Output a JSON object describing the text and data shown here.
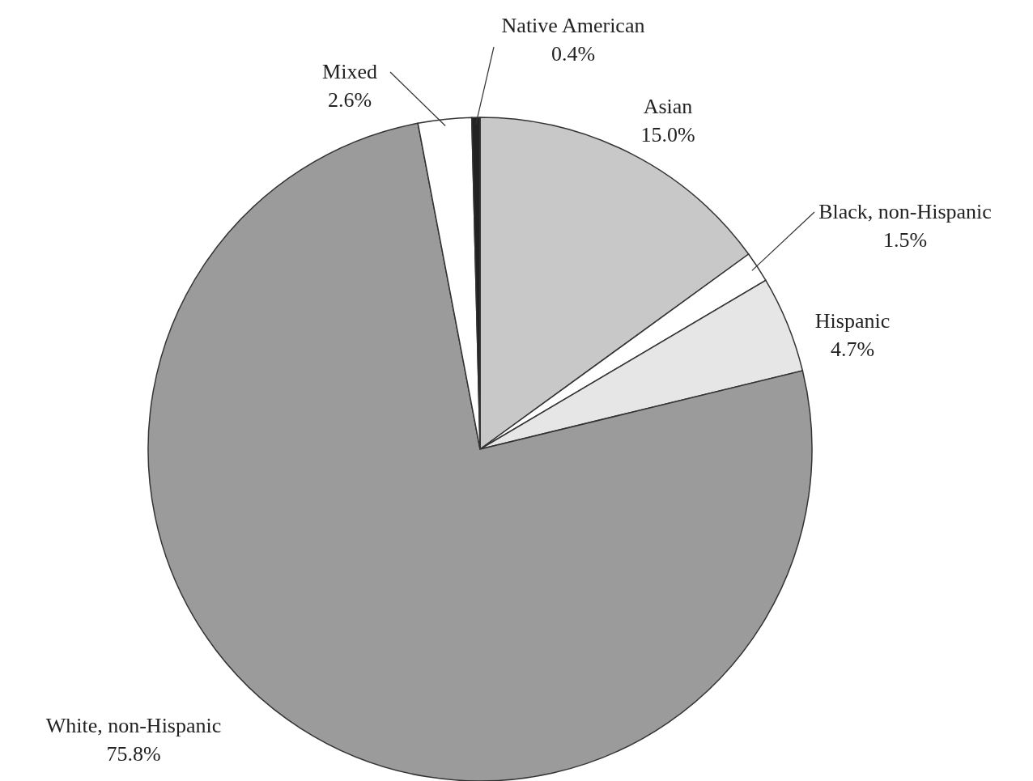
{
  "chart_data": {
    "type": "pie",
    "categories": [
      "Asian",
      "Black, non-Hispanic",
      "Hispanic",
      "White, non-Hispanic",
      "Mixed",
      "Native American"
    ],
    "values": [
      15.0,
      1.5,
      4.7,
      75.8,
      2.6,
      0.4
    ],
    "colors": [
      "#c8c8c8",
      "#ffffff",
      "#e6e6e6",
      "#9b9b9b",
      "#ffffff",
      "#222222"
    ],
    "value_labels": [
      "15.0%",
      "1.5%",
      "4.7%",
      "75.8%",
      "2.6%",
      "0.4%"
    ]
  }
}
